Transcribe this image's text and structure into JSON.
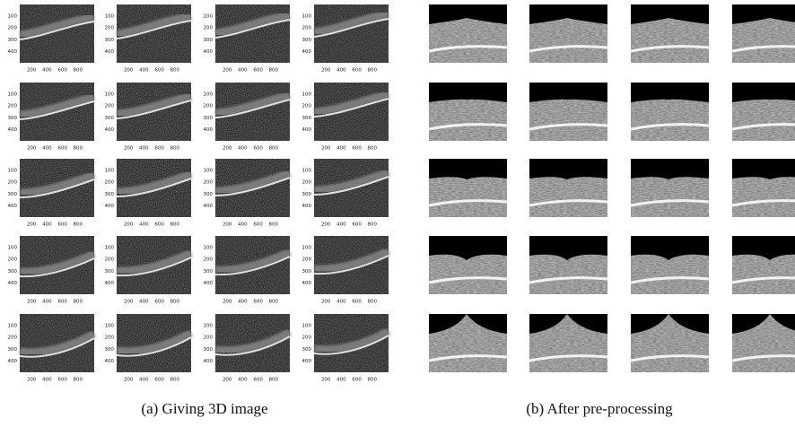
{
  "panels": [
    {
      "caption": "(a) Giving 3D image",
      "yticks": [
        100,
        200,
        300,
        400
      ],
      "xticks": [
        200,
        400,
        600,
        800
      ]
    },
    {
      "caption": "(b) After pre-processing"
    }
  ]
}
